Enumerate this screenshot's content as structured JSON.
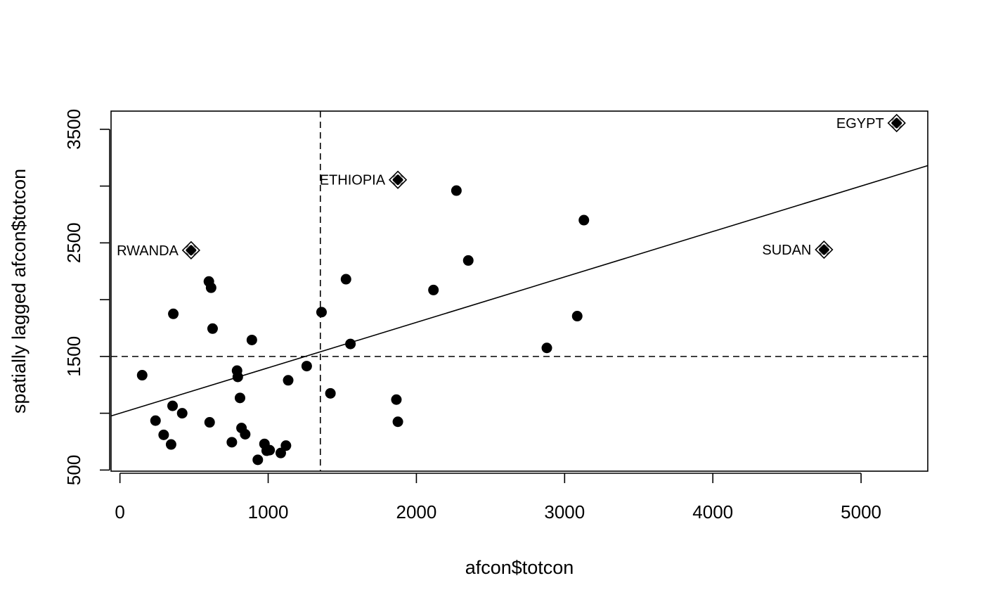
{
  "chart_data": {
    "type": "scatter",
    "title": "",
    "xlabel": "afcon$totcon",
    "ylabel": "spatially lagged afcon$totcon",
    "xlim": [
      -60,
      5450
    ],
    "ylim": [
      490,
      3660
    ],
    "xticks": [
      0,
      1000,
      2000,
      3000,
      4000,
      5000
    ],
    "xtick_labels": [
      "0",
      "1000",
      "2000",
      "3000",
      "4000",
      "5000"
    ],
    "yticks": [
      500,
      1000,
      1500,
      2000,
      2500,
      3000,
      3500
    ],
    "ytick_labels": [
      "500",
      "",
      "1500",
      "",
      "2500",
      "",
      "3500"
    ],
    "mean_x": 1352,
    "mean_y": 1500,
    "regression": {
      "intercept": 1000,
      "slope": 0.4
    },
    "points": [
      {
        "x": 150,
        "y": 1335
      },
      {
        "x": 240,
        "y": 935
      },
      {
        "x": 295,
        "y": 810
      },
      {
        "x": 345,
        "y": 725
      },
      {
        "x": 355,
        "y": 1065
      },
      {
        "x": 360,
        "y": 1875
      },
      {
        "x": 420,
        "y": 1000
      },
      {
        "x": 600,
        "y": 2160
      },
      {
        "x": 605,
        "y": 920
      },
      {
        "x": 615,
        "y": 2105
      },
      {
        "x": 625,
        "y": 1745
      },
      {
        "x": 755,
        "y": 745
      },
      {
        "x": 790,
        "y": 1375
      },
      {
        "x": 795,
        "y": 1320
      },
      {
        "x": 810,
        "y": 1135
      },
      {
        "x": 820,
        "y": 870
      },
      {
        "x": 845,
        "y": 815
      },
      {
        "x": 890,
        "y": 1645
      },
      {
        "x": 930,
        "y": 590
      },
      {
        "x": 975,
        "y": 730
      },
      {
        "x": 990,
        "y": 670
      },
      {
        "x": 1010,
        "y": 675
      },
      {
        "x": 1085,
        "y": 650
      },
      {
        "x": 1120,
        "y": 715
      },
      {
        "x": 1135,
        "y": 1290
      },
      {
        "x": 1260,
        "y": 1415
      },
      {
        "x": 1360,
        "y": 1890
      },
      {
        "x": 1420,
        "y": 1175
      },
      {
        "x": 1525,
        "y": 2180
      },
      {
        "x": 1555,
        "y": 1610
      },
      {
        "x": 1865,
        "y": 1120
      },
      {
        "x": 1875,
        "y": 925
      },
      {
        "x": 2115,
        "y": 2085
      },
      {
        "x": 2270,
        "y": 2960
      },
      {
        "x": 2350,
        "y": 2345
      },
      {
        "x": 2880,
        "y": 1575
      },
      {
        "x": 3085,
        "y": 1855
      },
      {
        "x": 3130,
        "y": 2700
      }
    ],
    "labeled_points": [
      {
        "x": 480,
        "y": 2435,
        "label": "RWANDA"
      },
      {
        "x": 1875,
        "y": 3055,
        "label": "ETHIOPIA"
      },
      {
        "x": 4750,
        "y": 2440,
        "label": "SUDAN"
      },
      {
        "x": 5240,
        "y": 3555,
        "label": "EGYPT"
      }
    ]
  }
}
